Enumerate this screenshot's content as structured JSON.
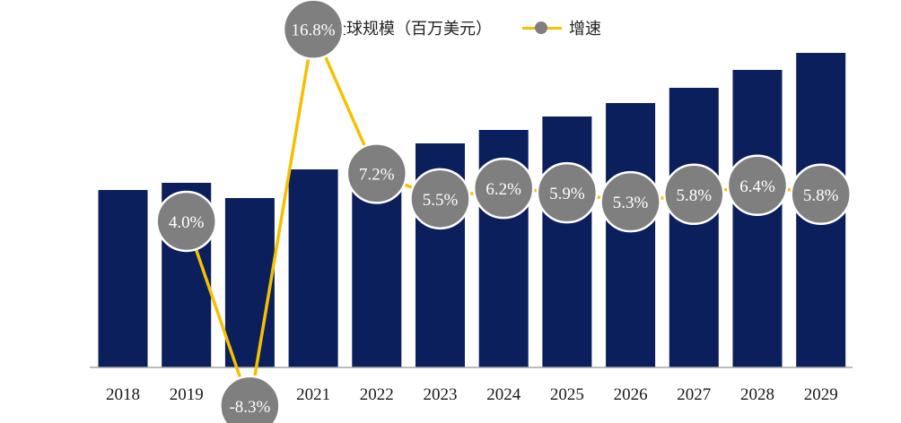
{
  "chart_data": {
    "type": "bar",
    "categories": [
      "2018",
      "2019",
      "2020",
      "2021",
      "2022",
      "2023",
      "2024",
      "2025",
      "2026",
      "2027",
      "2028",
      "2029"
    ],
    "series": [
      {
        "name": "全球规模（百万美元）",
        "type": "bar",
        "color": "#0a1f5c",
        "values": [
          198,
          206,
          189,
          221,
          237,
          250,
          265,
          280,
          295,
          312,
          332,
          351
        ]
      },
      {
        "name": "增速",
        "type": "line",
        "color": "#f5c000",
        "marker_color": "#7f7f7f",
        "values": [
          null,
          4.0,
          -8.3,
          16.8,
          7.2,
          5.5,
          6.2,
          5.9,
          5.3,
          5.8,
          6.4,
          5.8
        ],
        "labels": [
          "",
          "4.0%",
          "-8.3%",
          "16.8%",
          "7.2%",
          "5.5%",
          "6.2%",
          "5.9%",
          "5.3%",
          "5.8%",
          "6.4%",
          "5.8%"
        ]
      }
    ],
    "legend_position": "top",
    "grid": false
  }
}
